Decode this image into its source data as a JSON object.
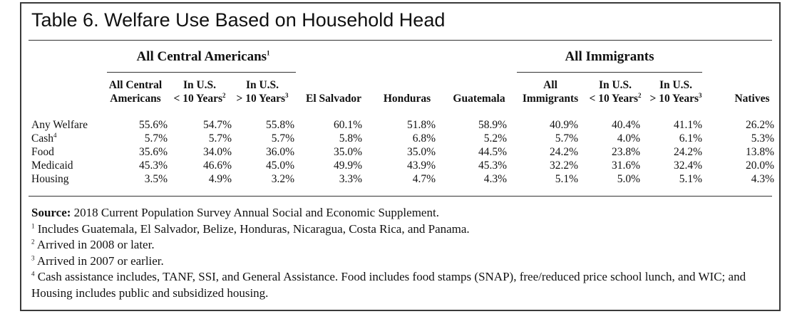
{
  "title": "Table 6. Welfare Use Based on Household Head",
  "groups": {
    "central": {
      "label": "All Central Americans",
      "sup": "1"
    },
    "immigrants": {
      "label": "All Immigrants"
    }
  },
  "columns": [
    {
      "line1": "All Central",
      "line2": "Americans",
      "sup": ""
    },
    {
      "line1": "In U.S.",
      "line2": "< 10 Years",
      "sup": "2"
    },
    {
      "line1": "In U.S.",
      "line2": "> 10 Years",
      "sup": "3"
    },
    {
      "line1": "",
      "line2": "El Salvador",
      "sup": ""
    },
    {
      "line1": "",
      "line2": "Honduras",
      "sup": ""
    },
    {
      "line1": "",
      "line2": "Guatemala",
      "sup": ""
    },
    {
      "line1": "All",
      "line2": "Immigrants",
      "sup": ""
    },
    {
      "line1": "In U.S.",
      "line2": "< 10 Years",
      "sup": "2"
    },
    {
      "line1": "In U.S.",
      "line2": "> 10 Years",
      "sup": "3"
    },
    {
      "line1": "",
      "line2": "Natives",
      "sup": ""
    }
  ],
  "rows": [
    {
      "label": "Any Welfare",
      "sup": "",
      "values": [
        "55.6%",
        "54.7%",
        "55.8%",
        "60.1%",
        "51.8%",
        "58.9%",
        "40.9%",
        "40.4%",
        "41.1%",
        "26.2%"
      ]
    },
    {
      "label": "Cash",
      "sup": "4",
      "values": [
        "5.7%",
        "5.7%",
        "5.7%",
        "5.8%",
        "6.8%",
        "5.2%",
        "5.7%",
        "4.0%",
        "6.1%",
        "5.3%"
      ]
    },
    {
      "label": "Food",
      "sup": "",
      "values": [
        "35.6%",
        "34.0%",
        "36.0%",
        "35.0%",
        "35.0%",
        "44.5%",
        "24.2%",
        "23.8%",
        "24.2%",
        "13.8%"
      ]
    },
    {
      "label": "Medicaid",
      "sup": "",
      "values": [
        "45.3%",
        "46.6%",
        "45.0%",
        "49.9%",
        "43.9%",
        "45.3%",
        "32.2%",
        "31.6%",
        "32.4%",
        "20.0%"
      ]
    },
    {
      "label": "Housing",
      "sup": "",
      "values": [
        "3.5%",
        "4.9%",
        "3.2%",
        "3.3%",
        "4.7%",
        "4.3%",
        "5.1%",
        "5.0%",
        "5.1%",
        "4.3%"
      ]
    }
  ],
  "notes": {
    "source_label": "Source:",
    "source_text": "2018 Current Population Survey Annual Social and Economic Supplement.",
    "footnotes": [
      {
        "mark": "1",
        "text": "Includes Guatemala, El Salvador, Belize, Honduras, Nicaragua, Costa Rica, and Panama."
      },
      {
        "mark": "2",
        "text": "Arrived in 2008 or later."
      },
      {
        "mark": "3",
        "text": "Arrived in 2007 or earlier."
      },
      {
        "mark": "4",
        "text": "Cash assistance includes, TANF, SSI, and General Assistance. Food includes food stamps (SNAP), free/reduced price school lunch, and WIC; and Housing includes public and subsidized housing."
      }
    ]
  }
}
